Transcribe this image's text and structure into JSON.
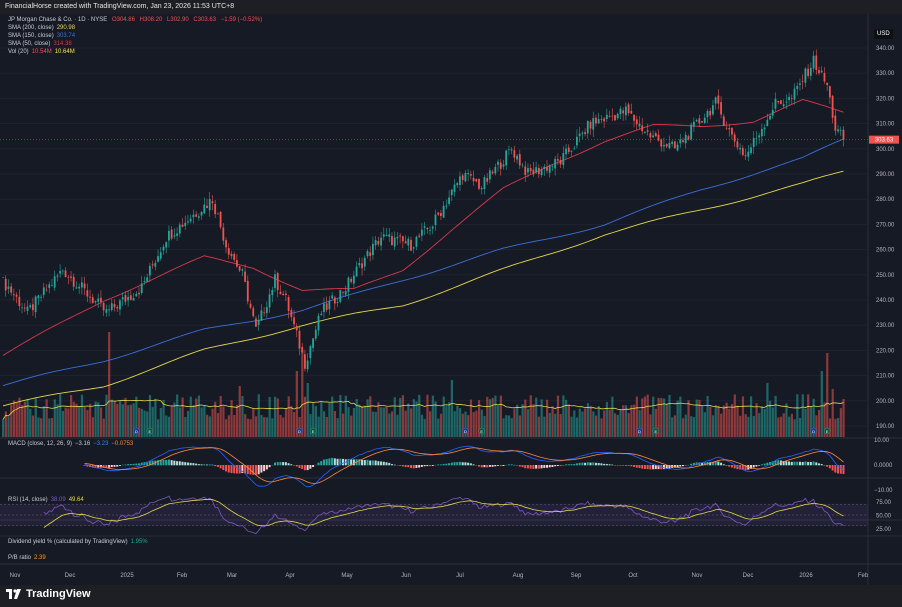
{
  "header": {
    "caption": "FinancialHorse created with TradingView.com, Jan 23, 2026 11:53 UTC+8"
  },
  "symbol": {
    "name": "JP Morgan Chase & Co. · 1D · NYSE",
    "o_label": "O",
    "o": "304.86",
    "h_label": "H",
    "h": "308.20",
    "l_label": "L",
    "l": "302.90",
    "c_label": "C",
    "c": "303.63",
    "change": "−1.59 (−0.52%)",
    "last_price": "303.63"
  },
  "indicators": {
    "sma200": {
      "label": "SMA (200, close)",
      "value": "290.98",
      "color": "#e6d84a"
    },
    "sma150": {
      "label": "SMA (150, close)",
      "value": "303.74",
      "color": "#3b6fd8"
    },
    "sma50": {
      "label": "SMA (50, close)",
      "value": "314.38",
      "color": "#d8394b"
    },
    "vol": {
      "label": "Vol (20)",
      "value": "10.54M",
      "avg": "10.64M"
    },
    "macd": {
      "label": "MACD (close, 12, 26, 9)",
      "hist": "−3.16",
      "macd": "−3.23",
      "signal": "−0.0753"
    },
    "rsi": {
      "label": "RSI (14, close)",
      "rsi": "38.09",
      "ma": "49.64"
    },
    "div": {
      "label": "Dividend yield % (calculated by TradingView)",
      "value": "1.95%"
    },
    "pb": {
      "label": "P/B ratio",
      "value": "2.39"
    }
  },
  "currency": "USD",
  "axis": {
    "price_ticks": [
      "340.00",
      "330.00",
      "320.00",
      "310.00",
      "300.00",
      "290.00",
      "280.00",
      "270.00",
      "260.00",
      "250.00",
      "240.00",
      "230.00",
      "220.00",
      "210.00",
      "200.00",
      "190.00"
    ],
    "macd_ticks": [
      "10.00",
      "0.0000",
      "−10.00"
    ],
    "rsi_ticks": [
      "75.00",
      "50.00",
      "25.00"
    ],
    "time_labels": [
      "Nov",
      "Dec",
      "2025",
      "Feb",
      "Mar",
      "Apr",
      "May",
      "Jun",
      "Jul",
      "Aug",
      "Sep",
      "Oct",
      "Nov",
      "Dec",
      "2026",
      "Feb"
    ]
  },
  "footer": {
    "brand": "TradingView"
  },
  "colors": {
    "up": "#26a69a",
    "down": "#ef5350",
    "bg": "#161a25"
  },
  "chart_data": {
    "type": "candlestick",
    "price_anchors_day_close": [
      [
        0,
        247
      ],
      [
        2,
        245
      ],
      [
        9,
        235
      ],
      [
        22,
        252
      ],
      [
        38,
        235
      ],
      [
        51,
        245
      ],
      [
        60,
        265
      ],
      [
        77,
        280
      ],
      [
        82,
        262
      ],
      [
        88,
        250
      ],
      [
        93,
        228
      ],
      [
        100,
        248
      ],
      [
        104,
        240
      ],
      [
        111,
        215
      ],
      [
        117,
        235
      ],
      [
        126,
        245
      ],
      [
        132,
        255
      ],
      [
        139,
        265
      ],
      [
        150,
        262
      ],
      [
        158,
        270
      ],
      [
        169,
        290
      ],
      [
        176,
        285
      ],
      [
        187,
        300
      ],
      [
        193,
        290
      ],
      [
        205,
        295
      ],
      [
        216,
        310
      ],
      [
        229,
        315
      ],
      [
        238,
        305
      ],
      [
        247,
        300
      ],
      [
        262,
        318
      ],
      [
        268,
        305
      ],
      [
        273,
        297
      ],
      [
        284,
        318
      ],
      [
        290,
        320
      ],
      [
        298,
        335
      ],
      [
        303,
        325
      ],
      [
        306,
        308
      ],
      [
        309,
        303.63
      ]
    ],
    "sma50_anchors": [
      [
        0,
        218
      ],
      [
        37,
        240
      ],
      [
        74,
        257
      ],
      [
        92,
        253
      ],
      [
        110,
        244
      ],
      [
        129,
        244
      ],
      [
        147,
        252
      ],
      [
        165,
        268
      ],
      [
        184,
        284
      ],
      [
        202,
        294
      ],
      [
        221,
        303
      ],
      [
        239,
        309
      ],
      [
        257,
        309
      ],
      [
        276,
        311
      ],
      [
        294,
        319
      ],
      [
        309,
        314.38
      ]
    ],
    "sma150_anchors": [
      [
        0,
        206
      ],
      [
        37,
        216
      ],
      [
        74,
        228
      ],
      [
        110,
        236
      ],
      [
        129,
        242
      ],
      [
        147,
        248
      ],
      [
        184,
        260
      ],
      [
        221,
        270
      ],
      [
        257,
        284
      ],
      [
        294,
        296
      ],
      [
        309,
        303.74
      ]
    ],
    "sma200_anchors": [
      [
        0,
        198
      ],
      [
        37,
        206
      ],
      [
        74,
        220
      ],
      [
        110,
        230
      ],
      [
        147,
        238
      ],
      [
        184,
        252
      ],
      [
        221,
        266
      ],
      [
        257,
        276
      ],
      [
        294,
        286
      ],
      [
        309,
        290.98
      ]
    ],
    "volume_avg_m": 10.64,
    "volume_spikes_day_m": [
      [
        39,
        35
      ],
      [
        54,
        14
      ],
      [
        87,
        17
      ],
      [
        108,
        22
      ],
      [
        110,
        29
      ],
      [
        112,
        18
      ],
      [
        165,
        19
      ],
      [
        281,
        18
      ],
      [
        303,
        28
      ],
      [
        301,
        22
      ],
      [
        305,
        16
      ]
    ],
    "events": [
      {
        "day": 49,
        "type": "D"
      },
      {
        "day": 54,
        "type": "E"
      },
      {
        "day": 109,
        "type": "D"
      },
      {
        "day": 114,
        "type": "E"
      },
      {
        "day": 170,
        "type": "D"
      },
      {
        "day": 176,
        "type": "E"
      },
      {
        "day": 234,
        "type": "D"
      },
      {
        "day": 240,
        "type": "E"
      },
      {
        "day": 298,
        "type": "D"
      },
      {
        "day": 303,
        "type": "E"
      }
    ]
  }
}
